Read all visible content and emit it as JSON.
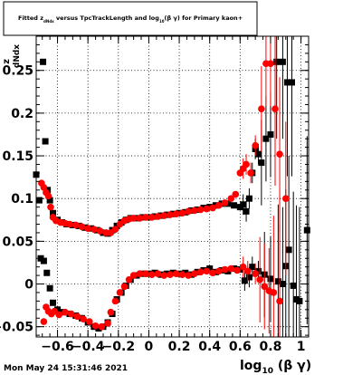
{
  "chart_data": {
    "type": "scatter",
    "title_parts": [
      "Fitted  z",
      "dNdx",
      " versus TpcTrackLength and log",
      "10",
      "(β γ) for Primary kaon+"
    ],
    "xlabel_parts": [
      "log",
      "10",
      " (β γ)"
    ],
    "ylabel": "dNdx",
    "ylabel_prefix": "z",
    "footer": "Mon May 24 15:31:46 2021",
    "xlim": [
      -0.74,
      1.05
    ],
    "ylim": [
      -0.062,
      0.29
    ],
    "grid": true,
    "x_ticks": [
      -0.6,
      -0.4,
      -0.2,
      0,
      0.2,
      0.4,
      0.6,
      0.8,
      1
    ],
    "x_tick_labels": [
      "−0.6",
      "−0.4",
      "−0.2",
      "0",
      "0.2",
      "0.4",
      "0.6",
      "0.8",
      "1"
    ],
    "y_ticks": [
      -0.05,
      0,
      0.05,
      0.1,
      0.15,
      0.2,
      0.25
    ],
    "y_tick_labels": [
      "−0.05",
      "0",
      "0.05",
      "0.1",
      "0.15",
      "0.2",
      "0.25"
    ],
    "series": [
      {
        "color": "#000000",
        "marker": "square",
        "upper": [
          [
            -0.74,
            0.128
          ],
          [
            -0.72,
            0.098
          ],
          [
            -0.695,
            0.26
          ],
          [
            -0.68,
            0.167
          ],
          [
            -0.665,
            0.11
          ],
          [
            -0.65,
            0.098
          ],
          [
            -0.63,
            0.083
          ],
          [
            -0.6,
            0.075
          ],
          [
            -0.57,
            0.072
          ],
          [
            -0.54,
            0.07
          ],
          [
            -0.5,
            0.069
          ],
          [
            -0.46,
            0.068
          ],
          [
            -0.42,
            0.066
          ],
          [
            -0.38,
            0.065
          ],
          [
            -0.34,
            0.063
          ],
          [
            -0.3,
            0.06
          ],
          [
            -0.27,
            0.059
          ],
          [
            -0.24,
            0.063
          ],
          [
            -0.21,
            0.068
          ],
          [
            -0.18,
            0.072
          ],
          [
            -0.15,
            0.075
          ],
          [
            -0.12,
            0.077
          ],
          [
            -0.08,
            0.077
          ],
          [
            -0.04,
            0.078
          ],
          [
            0.0,
            0.078
          ],
          [
            0.04,
            0.079
          ],
          [
            0.08,
            0.08
          ],
          [
            0.12,
            0.081
          ],
          [
            0.16,
            0.082
          ],
          [
            0.2,
            0.083
          ],
          [
            0.24,
            0.084
          ],
          [
            0.28,
            0.086
          ],
          [
            0.32,
            0.087
          ],
          [
            0.36,
            0.089
          ],
          [
            0.4,
            0.09
          ],
          [
            0.44,
            0.092
          ],
          [
            0.48,
            0.094
          ],
          [
            0.52,
            0.094
          ],
          [
            0.56,
            0.092
          ],
          [
            0.6,
            0.09
          ],
          [
            0.62,
            0.093
          ],
          [
            0.64,
            0.085
          ],
          [
            0.66,
            0.1
          ],
          [
            0.68,
            0.13
          ],
          [
            0.7,
            0.158
          ],
          [
            0.72,
            0.152
          ],
          [
            0.74,
            0.142
          ],
          [
            0.77,
            0.17
          ],
          [
            0.8,
            0.175
          ],
          [
            0.84,
            0.26
          ],
          [
            0.88,
            0.26
          ],
          [
            0.91,
            0.236
          ],
          [
            0.94,
            0.236
          ],
          [
            1.04,
            0.063
          ]
        ],
        "lower": [
          [
            -0.71,
            0.03
          ],
          [
            -0.69,
            0.027
          ],
          [
            -0.67,
            0.013
          ],
          [
            -0.65,
            -0.005
          ],
          [
            -0.63,
            -0.022
          ],
          [
            -0.6,
            -0.03
          ],
          [
            -0.56,
            -0.033
          ],
          [
            -0.52,
            -0.035
          ],
          [
            -0.48,
            -0.037
          ],
          [
            -0.44,
            -0.04
          ],
          [
            -0.4,
            -0.045
          ],
          [
            -0.36,
            -0.05
          ],
          [
            -0.33,
            -0.052
          ],
          [
            -0.3,
            -0.05
          ],
          [
            -0.27,
            -0.045
          ],
          [
            -0.24,
            -0.035
          ],
          [
            -0.21,
            -0.018
          ],
          [
            -0.18,
            -0.01
          ],
          [
            -0.15,
            -0.002
          ],
          [
            -0.12,
            0.005
          ],
          [
            -0.08,
            0.01
          ],
          [
            -0.04,
            0.012
          ],
          [
            0.0,
            0.012
          ],
          [
            0.04,
            0.013
          ],
          [
            0.08,
            0.011
          ],
          [
            0.12,
            0.012
          ],
          [
            0.16,
            0.013
          ],
          [
            0.2,
            0.012
          ],
          [
            0.24,
            0.013
          ],
          [
            0.28,
            0.011
          ],
          [
            0.32,
            0.014
          ],
          [
            0.36,
            0.016
          ],
          [
            0.4,
            0.018
          ],
          [
            0.44,
            0.014
          ],
          [
            0.48,
            0.016
          ],
          [
            0.52,
            0.015
          ],
          [
            0.56,
            0.018
          ],
          [
            0.6,
            0.017
          ],
          [
            0.63,
            0.004
          ],
          [
            0.66,
            0.008
          ],
          [
            0.68,
            0.02
          ],
          [
            0.72,
            0.015
          ],
          [
            0.76,
            0.011
          ],
          [
            0.8,
            0.006
          ],
          [
            0.85,
            0.003
          ],
          [
            0.88,
            0.0
          ],
          [
            0.9,
            0.021
          ],
          [
            0.92,
            0.04
          ],
          [
            0.95,
            -0.002
          ],
          [
            0.97,
            -0.018
          ],
          [
            0.99,
            -0.02
          ]
        ]
      },
      {
        "color": "#ff0000",
        "marker": "circle",
        "upper": [
          [
            -0.705,
            0.118
          ],
          [
            -0.69,
            0.113
          ],
          [
            -0.675,
            0.107
          ],
          [
            -0.66,
            0.103
          ],
          [
            -0.645,
            0.09
          ],
          [
            -0.63,
            0.078
          ],
          [
            -0.61,
            0.074
          ],
          [
            -0.58,
            0.072
          ],
          [
            -0.55,
            0.071
          ],
          [
            -0.52,
            0.07
          ],
          [
            -0.48,
            0.069
          ],
          [
            -0.44,
            0.067
          ],
          [
            -0.4,
            0.065
          ],
          [
            -0.36,
            0.064
          ],
          [
            -0.32,
            0.062
          ],
          [
            -0.28,
            0.06
          ],
          [
            -0.25,
            0.06
          ],
          [
            -0.22,
            0.064
          ],
          [
            -0.19,
            0.07
          ],
          [
            -0.16,
            0.074
          ],
          [
            -0.13,
            0.076
          ],
          [
            -0.1,
            0.077
          ],
          [
            -0.06,
            0.077
          ],
          [
            -0.02,
            0.078
          ],
          [
            0.02,
            0.078
          ],
          [
            0.06,
            0.079
          ],
          [
            0.1,
            0.08
          ],
          [
            0.14,
            0.081
          ],
          [
            0.18,
            0.082
          ],
          [
            0.22,
            0.083
          ],
          [
            0.26,
            0.085
          ],
          [
            0.3,
            0.086
          ],
          [
            0.34,
            0.087
          ],
          [
            0.38,
            0.088
          ],
          [
            0.42,
            0.089
          ],
          [
            0.46,
            0.092
          ],
          [
            0.5,
            0.095
          ],
          [
            0.54,
            0.1
          ],
          [
            0.57,
            0.105
          ],
          [
            0.6,
            0.13
          ],
          [
            0.62,
            0.135
          ],
          [
            0.64,
            0.14
          ],
          [
            0.67,
            0.13
          ],
          [
            0.7,
            0.162
          ],
          [
            0.74,
            0.205
          ],
          [
            0.77,
            0.258
          ],
          [
            0.8,
            0.258
          ],
          [
            0.83,
            0.205
          ],
          [
            0.86,
            0.152
          ],
          [
            0.9,
            0.1
          ]
        ],
        "lower": [
          [
            -0.69,
            -0.044
          ],
          [
            -0.675,
            -0.027
          ],
          [
            -0.66,
            -0.032
          ],
          [
            -0.64,
            -0.035
          ],
          [
            -0.62,
            -0.032
          ],
          [
            -0.59,
            -0.036
          ],
          [
            -0.55,
            -0.033
          ],
          [
            -0.51,
            -0.035
          ],
          [
            -0.47,
            -0.038
          ],
          [
            -0.43,
            -0.041
          ],
          [
            -0.39,
            -0.044
          ],
          [
            -0.35,
            -0.049
          ],
          [
            -0.31,
            -0.05
          ],
          [
            -0.27,
            -0.046
          ],
          [
            -0.25,
            -0.033
          ],
          [
            -0.22,
            -0.02
          ],
          [
            -0.19,
            -0.01
          ],
          [
            -0.16,
            -0.003
          ],
          [
            -0.13,
            0.005
          ],
          [
            -0.1,
            0.01
          ],
          [
            -0.06,
            0.012
          ],
          [
            -0.02,
            0.012
          ],
          [
            0.02,
            0.011
          ],
          [
            0.06,
            0.012
          ],
          [
            0.1,
            0.01
          ],
          [
            0.14,
            0.011
          ],
          [
            0.18,
            0.012
          ],
          [
            0.22,
            0.011
          ],
          [
            0.26,
            0.01
          ],
          [
            0.3,
            0.012
          ],
          [
            0.34,
            0.014
          ],
          [
            0.38,
            0.015
          ],
          [
            0.42,
            0.013
          ],
          [
            0.46,
            0.015
          ],
          [
            0.5,
            0.017
          ],
          [
            0.54,
            0.018
          ],
          [
            0.58,
            0.016
          ],
          [
            0.62,
            0.02
          ],
          [
            0.65,
            0.015
          ],
          [
            0.7,
            0.012
          ],
          [
            0.73,
            0.005
          ],
          [
            0.76,
            -0.003
          ],
          [
            0.79,
            -0.008
          ],
          [
            0.82,
            -0.01
          ],
          [
            0.86,
            -0.02
          ]
        ]
      }
    ]
  }
}
